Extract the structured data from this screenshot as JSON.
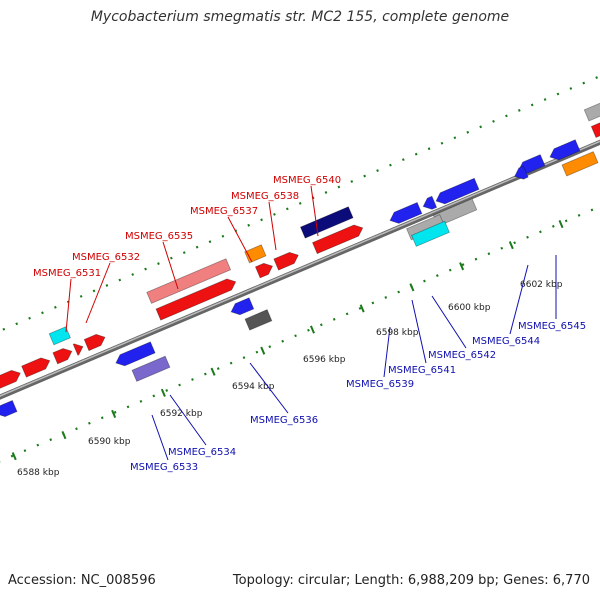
{
  "title": "Mycobacterium smegmatis str. MC2 155, complete genome",
  "footer": {
    "accession": "Accession: NC_008596",
    "summary": "Topology: circular; Length: 6,988,209 bp; Genes: 6,770"
  },
  "ticks": [
    "6588 kbp",
    "6590 kbp",
    "6592 kbp",
    "6594 kbp",
    "6596 kbp",
    "6598 kbp",
    "6600 kbp",
    "6602 kbp"
  ],
  "forward_genes": [
    "MSMEG_6531",
    "MSMEG_6532",
    "MSMEG_6535",
    "MSMEG_6537",
    "MSMEG_6538",
    "MSMEG_6540"
  ],
  "reverse_genes": [
    "MSMEG_6533",
    "MSMEG_6534",
    "MSMEG_6536",
    "MSMEG_6539",
    "MSMEG_6541",
    "MSMEG_6542",
    "MSMEG_6544",
    "MSMEG_6545"
  ],
  "colors": {
    "forward_label": "#d00000",
    "reverse_label": "#1010b0",
    "cds_forward": "#ee1111",
    "cds_reverse": "#2222ee",
    "rna": "#00e5ee",
    "orange": "#ff8c00",
    "gray": "#aaaaaa",
    "navy": "#0b0b7a",
    "pink": "#f08080",
    "lavender": "#7b68cc",
    "backbone": "#888888",
    "tick": "#1a7a1a"
  }
}
